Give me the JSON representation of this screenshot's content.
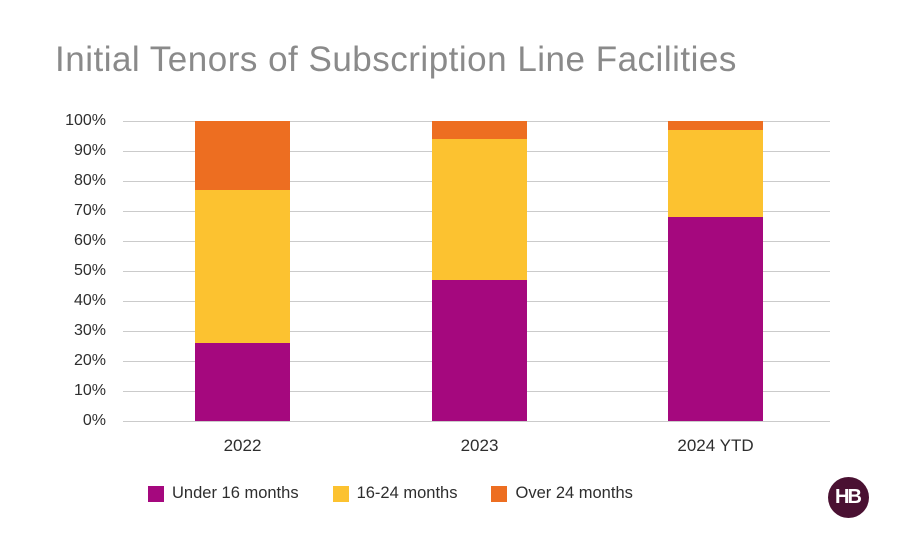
{
  "title": "Initial Tenors of Subscription Line Facilities",
  "logo": {
    "text": "HB"
  },
  "colors": {
    "under16": "#A5087E",
    "m16to24": "#FCC230",
    "over24": "#ED6E21",
    "gridline": "#CBCBCB",
    "logo_bg": "#4A1132"
  },
  "chart_data": {
    "type": "bar",
    "stacked": true,
    "title": "Initial Tenors of Subscription Line Facilities",
    "categories": [
      "2022",
      "2023",
      "2024 YTD"
    ],
    "series": [
      {
        "name": "Under 16 months",
        "color_key": "under16",
        "values": [
          26,
          47,
          68
        ]
      },
      {
        "name": "16-24 months",
        "color_key": "m16to24",
        "values": [
          51,
          47,
          29
        ]
      },
      {
        "name": "Over 24 months",
        "color_key": "over24",
        "values": [
          23,
          6,
          3
        ]
      }
    ],
    "xlabel": "",
    "ylabel": "",
    "ylim": [
      0,
      100
    ],
    "y_ticks": [
      "100%",
      "90%",
      "80%",
      "70%",
      "60%",
      "50%",
      "40%",
      "30%",
      "20%",
      "10%",
      "0%"
    ],
    "grid": true,
    "legend_position": "bottom"
  },
  "legend": {
    "items": [
      {
        "label": "Under 16 months",
        "color_key": "under16"
      },
      {
        "label": "16-24 months",
        "color_key": "m16to24"
      },
      {
        "label": "Over 24 months",
        "color_key": "over24"
      }
    ]
  }
}
